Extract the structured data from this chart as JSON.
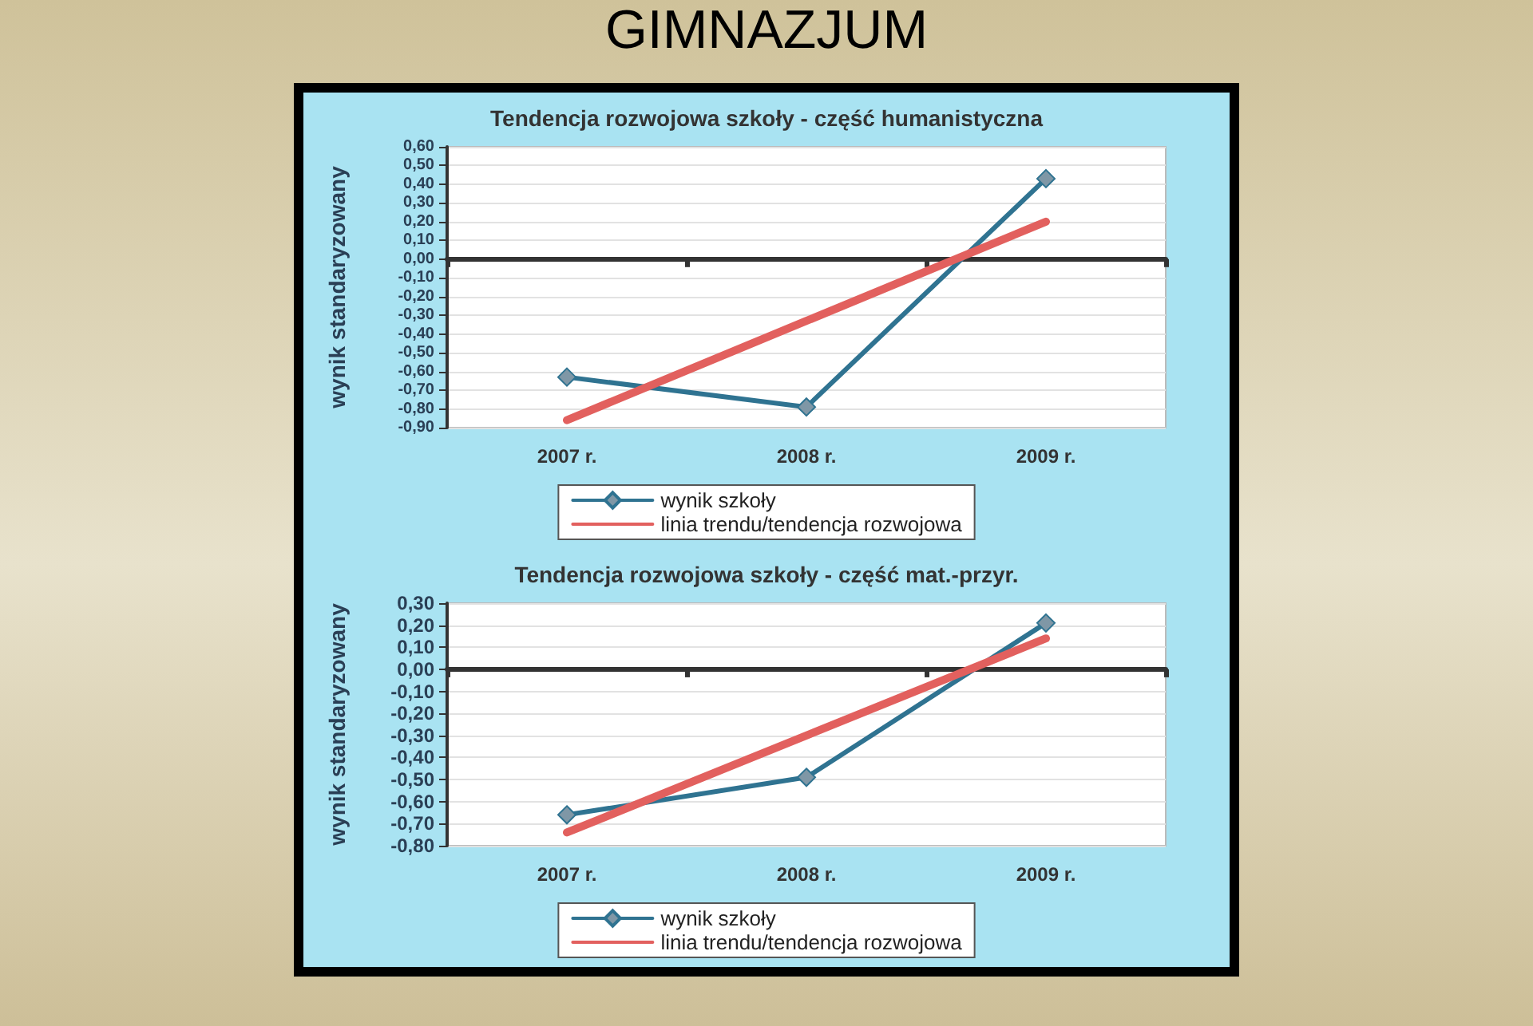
{
  "chart_data": [
    {
      "type": "line",
      "title": "Tendencja rozwojowa szkoły - część humanistyczna",
      "ylabel": "wynik standaryzowany",
      "annotations": [
        "GIMNAZJUM"
      ],
      "categories": [
        "2007 r.",
        "2008 r.",
        "2009 r."
      ],
      "series": [
        {
          "name": "wynik szkoły",
          "color": "#2f7391",
          "values": [
            -0.63,
            -0.79,
            0.43
          ],
          "marker": "diamond"
        },
        {
          "name": "linia trendu/tendencja rozwojowa",
          "color": "#e2605e",
          "values": [
            -0.86,
            -0.33,
            0.2
          ],
          "marker": "none"
        }
      ],
      "ylim": [
        -0.9,
        0.6
      ],
      "yticks": [
        {
          "value": -0.9,
          "label": "-0,90"
        },
        {
          "value": -0.8,
          "label": "-0,80"
        },
        {
          "value": -0.7,
          "label": "-0,70"
        },
        {
          "value": -0.6,
          "label": "-0,60"
        },
        {
          "value": -0.5,
          "label": "-0,50"
        },
        {
          "value": -0.4,
          "label": "-0,40"
        },
        {
          "value": -0.3,
          "label": "-0,30"
        },
        {
          "value": -0.2,
          "label": "-0,20"
        },
        {
          "value": -0.1,
          "label": "-0,10"
        },
        {
          "value": 0,
          "label": "0,00"
        },
        {
          "value": 0.1,
          "label": "0,10"
        },
        {
          "value": 0.2,
          "label": "0,20"
        },
        {
          "value": 0.3,
          "label": "0,30"
        },
        {
          "value": 0.4,
          "label": "0,40"
        },
        {
          "value": 0.5,
          "label": "0,50"
        },
        {
          "value": 0.6,
          "label": "0,60"
        }
      ],
      "grid": "y",
      "legend": "bottom"
    },
    {
      "type": "line",
      "title": "Tendencja rozwojowa szkoły - część mat.-przyr.",
      "ylabel": "wynik standaryzowany",
      "categories": [
        "2007 r.",
        "2008 r.",
        "2009 r."
      ],
      "series": [
        {
          "name": "wynik szkoły",
          "color": "#2f7391",
          "values": [
            -0.66,
            -0.49,
            0.21
          ],
          "marker": "diamond"
        },
        {
          "name": "linia trendu/tendencja rozwojowa",
          "color": "#e2605e",
          "values": [
            -0.74,
            -0.3,
            0.14
          ],
          "marker": "none"
        }
      ],
      "ylim": [
        -0.8,
        0.3
      ],
      "yticks": [
        {
          "value": -0.8,
          "label": "-0,80"
        },
        {
          "value": -0.7,
          "label": "-0,70"
        },
        {
          "value": -0.6,
          "label": "-0,60"
        },
        {
          "value": -0.5,
          "label": "-0,50"
        },
        {
          "value": -0.4,
          "label": "-0,40"
        },
        {
          "value": -0.3,
          "label": "-0,30"
        },
        {
          "value": -0.2,
          "label": "-0,20"
        },
        {
          "value": -0.1,
          "label": "-0,10"
        },
        {
          "value": 0,
          "label": "0,00"
        },
        {
          "value": 0.1,
          "label": "0,10"
        },
        {
          "value": 0.2,
          "label": "0,20"
        },
        {
          "value": 0.3,
          "label": "0,30"
        }
      ],
      "grid": "y",
      "legend": "bottom"
    }
  ]
}
